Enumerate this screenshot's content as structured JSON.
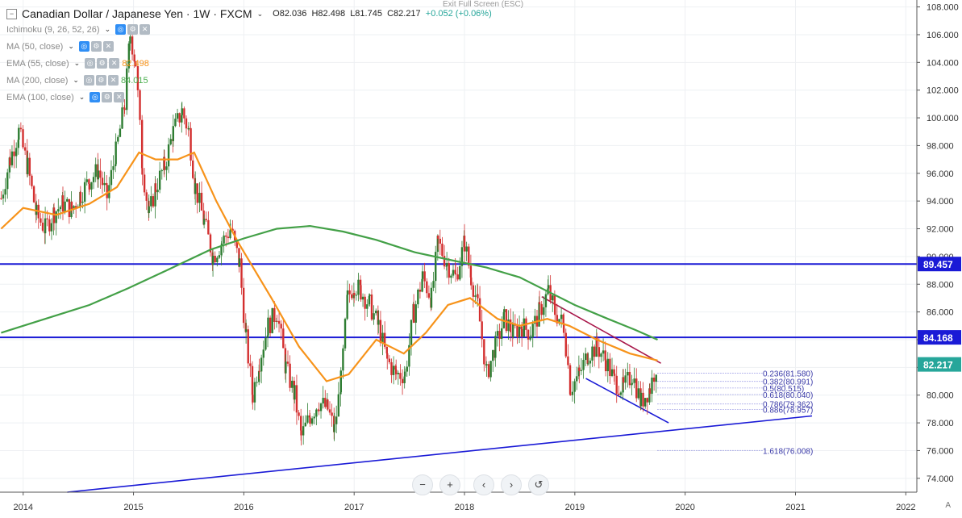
{
  "header": {
    "symbol": "Canadian Dollar / Japanese Yen · 1W · FXCM",
    "ohlc": {
      "o": "O82.036",
      "h": "H82.498",
      "l": "L81.745",
      "c": "C82.217",
      "chg": "+0.052 (+0.06%)"
    },
    "exit_fullscreen": "Exit Full Screen (ESC)"
  },
  "indicators": [
    {
      "label": "Ichimoku (9, 26, 52, 26)",
      "value": "",
      "color": "#999999"
    },
    {
      "label": "MA (50, close)",
      "value": "",
      "color": "#999999"
    },
    {
      "label": "EMA (55, close)",
      "value": "82.498",
      "color": "#f7931a"
    },
    {
      "label": "MA (200, close)",
      "value": "84.015",
      "color": "#4caf50"
    },
    {
      "label": "EMA (100, close)",
      "value": "",
      "color": "#999999"
    }
  ],
  "nav": {
    "zoom_out": "−",
    "zoom_in": "+",
    "back": "‹",
    "forward": "›",
    "reset": "↺"
  },
  "corner_label": "A",
  "chart_data": {
    "type": "candlestick",
    "yticks": [
      74,
      76,
      78,
      80,
      82,
      84,
      86,
      88,
      90,
      92,
      94,
      96,
      98,
      100,
      102,
      104,
      106,
      108
    ],
    "ylim": [
      73,
      108.5
    ],
    "xticks": [
      {
        "label": "2014",
        "t": 2014.0
      },
      {
        "label": "2015",
        "t": 2015.0
      },
      {
        "label": "2016",
        "t": 2016.0
      },
      {
        "label": "2017",
        "t": 2017.0
      },
      {
        "label": "2018",
        "t": 2018.0
      },
      {
        "label": "2019",
        "t": 2019.0
      },
      {
        "label": "2020",
        "t": 2020.0
      },
      {
        "label": "2021",
        "t": 2021.0
      },
      {
        "label": "2022",
        "t": 2022.0
      }
    ],
    "xlim": [
      2013.79,
      2022.1
    ],
    "price_labels": [
      {
        "value": 89.457,
        "text": "89.457",
        "color": "#1a1ad6"
      },
      {
        "value": 84.168,
        "text": "84.168",
        "color": "#1a1ad6"
      },
      {
        "value": 82.217,
        "text": "82.217",
        "color": "#26a69a"
      }
    ],
    "hlines": [
      {
        "value": 89.457,
        "color": "#1a1ad6"
      },
      {
        "value": 84.168,
        "color": "#1a1ad6"
      }
    ],
    "trendlines": [
      {
        "points": [
          [
            2014.4,
            73.0
          ],
          [
            2021.15,
            78.5
          ]
        ],
        "color": "#1a1ad6"
      },
      {
        "points": [
          [
            2019.1,
            81.2
          ],
          [
            2019.85,
            78.0
          ]
        ],
        "color": "#1a1ad6"
      },
      {
        "points": [
          [
            2018.7,
            87.1
          ],
          [
            2019.78,
            82.3
          ]
        ],
        "color": "#a8174a"
      }
    ],
    "fib": {
      "x_start": 2019.75,
      "x_end": 2020.7,
      "levels": [
        {
          "label": "0.236(81.580)",
          "value": 81.58
        },
        {
          "label": "0.382(80.991)",
          "value": 80.991
        },
        {
          "label": "0.5(80.515)",
          "value": 80.515
        },
        {
          "label": "0.618(80.040)",
          "value": 80.04
        },
        {
          "label": "0.786(79.362)",
          "value": 79.362
        },
        {
          "label": "0.886(78.957)",
          "value": 78.957
        },
        {
          "label": "1.618(76.008)",
          "value": 76.008
        }
      ]
    },
    "series": [
      {
        "name": "CAD/JPY weekly close",
        "kind": "price",
        "points": [
          [
            2013.8,
            94.2
          ],
          [
            2013.88,
            97.0
          ],
          [
            2013.96,
            99.0
          ],
          [
            2014.04,
            96.5
          ],
          [
            2014.12,
            93.0
          ],
          [
            2014.2,
            92.0
          ],
          [
            2014.28,
            93.2
          ],
          [
            2014.36,
            93.8
          ],
          [
            2014.44,
            93.4
          ],
          [
            2014.52,
            94.5
          ],
          [
            2014.6,
            95.5
          ],
          [
            2014.68,
            96.2
          ],
          [
            2014.76,
            94.3
          ],
          [
            2014.84,
            97.5
          ],
          [
            2014.92,
            101.0
          ],
          [
            2014.97,
            106.0
          ],
          [
            2015.02,
            104.0
          ],
          [
            2015.08,
            96.5
          ],
          [
            2015.14,
            93.0
          ],
          [
            2015.2,
            95.0
          ],
          [
            2015.28,
            96.5
          ],
          [
            2015.36,
            99.0
          ],
          [
            2015.44,
            100.5
          ],
          [
            2015.5,
            99.0
          ],
          [
            2015.56,
            95.0
          ],
          [
            2015.64,
            92.5
          ],
          [
            2015.72,
            90.0
          ],
          [
            2015.8,
            91.0
          ],
          [
            2015.88,
            92.0
          ],
          [
            2015.96,
            89.5
          ],
          [
            2016.02,
            84.0
          ],
          [
            2016.08,
            80.0
          ],
          [
            2016.14,
            82.5
          ],
          [
            2016.22,
            85.0
          ],
          [
            2016.3,
            86.0
          ],
          [
            2016.38,
            82.0
          ],
          [
            2016.46,
            80.0
          ],
          [
            2016.52,
            77.0
          ],
          [
            2016.6,
            78.5
          ],
          [
            2016.68,
            79.5
          ],
          [
            2016.76,
            79.0
          ],
          [
            2016.82,
            77.5
          ],
          [
            2016.88,
            81.0
          ],
          [
            2016.94,
            87.0
          ],
          [
            2017.0,
            88.0
          ],
          [
            2017.06,
            87.5
          ],
          [
            2017.14,
            86.5
          ],
          [
            2017.22,
            85.0
          ],
          [
            2017.3,
            82.5
          ],
          [
            2017.38,
            81.5
          ],
          [
            2017.46,
            81.5
          ],
          [
            2017.54,
            86.0
          ],
          [
            2017.62,
            88.5
          ],
          [
            2017.7,
            87.0
          ],
          [
            2017.76,
            91.0
          ],
          [
            2017.84,
            89.5
          ],
          [
            2017.92,
            88.5
          ],
          [
            2018.0,
            91.0
          ],
          [
            2018.06,
            88.5
          ],
          [
            2018.12,
            86.5
          ],
          [
            2018.2,
            81.5
          ],
          [
            2018.28,
            83.5
          ],
          [
            2018.36,
            85.5
          ],
          [
            2018.44,
            84.5
          ],
          [
            2018.52,
            85.0
          ],
          [
            2018.6,
            84.5
          ],
          [
            2018.68,
            86.0
          ],
          [
            2018.76,
            87.5
          ],
          [
            2018.82,
            86.0
          ],
          [
            2018.9,
            85.0
          ],
          [
            2018.96,
            80.5
          ],
          [
            2019.04,
            81.5
          ],
          [
            2019.12,
            83.0
          ],
          [
            2019.2,
            83.5
          ],
          [
            2019.28,
            82.5
          ],
          [
            2019.36,
            81.0
          ],
          [
            2019.44,
            80.5
          ],
          [
            2019.52,
            81.5
          ],
          [
            2019.6,
            79.5
          ],
          [
            2019.68,
            80.5
          ],
          [
            2019.74,
            82.2
          ]
        ]
      },
      {
        "name": "EMA (55, close)",
        "kind": "ema55",
        "points": [
          [
            2013.8,
            92.0
          ],
          [
            2014.0,
            93.5
          ],
          [
            2014.3,
            93.0
          ],
          [
            2014.6,
            93.8
          ],
          [
            2014.85,
            95.0
          ],
          [
            2015.05,
            97.5
          ],
          [
            2015.2,
            97.0
          ],
          [
            2015.4,
            97.0
          ],
          [
            2015.55,
            97.5
          ],
          [
            2015.75,
            94.0
          ],
          [
            2015.95,
            91.0
          ],
          [
            2016.25,
            87.0
          ],
          [
            2016.5,
            83.5
          ],
          [
            2016.75,
            81.0
          ],
          [
            2016.95,
            81.5
          ],
          [
            2017.2,
            84.0
          ],
          [
            2017.45,
            83.0
          ],
          [
            2017.65,
            84.5
          ],
          [
            2017.85,
            86.5
          ],
          [
            2018.05,
            87.0
          ],
          [
            2018.3,
            85.5
          ],
          [
            2018.5,
            85.0
          ],
          [
            2018.75,
            85.5
          ],
          [
            2018.95,
            85.0
          ],
          [
            2019.2,
            84.0
          ],
          [
            2019.5,
            83.0
          ],
          [
            2019.75,
            82.5
          ]
        ]
      },
      {
        "name": "MA (200, close)",
        "kind": "ma200",
        "points": [
          [
            2013.8,
            84.5
          ],
          [
            2014.2,
            85.5
          ],
          [
            2014.6,
            86.5
          ],
          [
            2014.95,
            87.7
          ],
          [
            2015.3,
            89.0
          ],
          [
            2015.7,
            90.5
          ],
          [
            2016.0,
            91.3
          ],
          [
            2016.3,
            92.0
          ],
          [
            2016.6,
            92.2
          ],
          [
            2016.9,
            91.8
          ],
          [
            2017.2,
            91.2
          ],
          [
            2017.55,
            90.3
          ],
          [
            2017.9,
            89.7
          ],
          [
            2018.2,
            89.2
          ],
          [
            2018.5,
            88.5
          ],
          [
            2018.75,
            87.5
          ],
          [
            2019.0,
            86.5
          ],
          [
            2019.3,
            85.5
          ],
          [
            2019.55,
            84.7
          ],
          [
            2019.75,
            84.0
          ]
        ]
      }
    ]
  }
}
